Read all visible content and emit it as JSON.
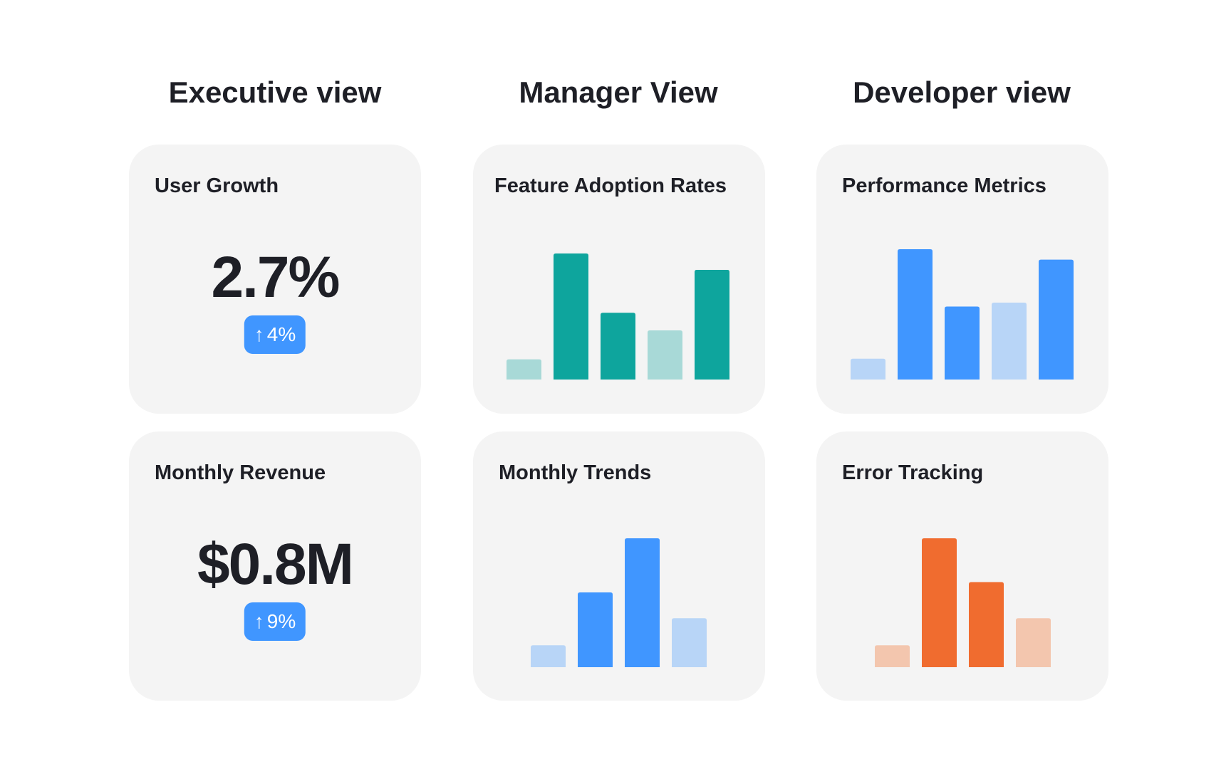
{
  "headings": [
    "Executive view",
    "Manager View",
    "Developer view"
  ],
  "executive": {
    "user_growth": {
      "title": "User Growth",
      "value": "2.7%",
      "change": "4%",
      "change_icon": "arrow-up-icon"
    },
    "monthly_revenue": {
      "title": "Monthly Revenue",
      "value": "$0.8M",
      "change": "9%",
      "change_icon": "arrow-up-icon"
    },
    "badge_color": "#4096ff"
  },
  "chart_data": [
    {
      "type": "bar",
      "title": "Feature Adoption Rates",
      "values": [
        16,
        100,
        53,
        39,
        87
      ],
      "colors": [
        "#a8d9d7",
        "#0ea59d",
        "#0ea59d",
        "#a8d9d7",
        "#0ea59d"
      ]
    },
    {
      "type": "bar",
      "title": "Performance Metrics",
      "values": [
        16,
        100,
        56,
        59,
        92
      ],
      "colors": [
        "#b8d5f7",
        "#4096ff",
        "#4096ff",
        "#b8d5f7",
        "#4096ff"
      ]
    },
    {
      "type": "bar",
      "title": "Monthly Trends",
      "values": [
        17,
        58,
        100,
        38
      ],
      "colors": [
        "#b8d5f7",
        "#4096ff",
        "#4096ff",
        "#b8d5f7"
      ]
    },
    {
      "type": "bar",
      "title": "Error Tracking",
      "values": [
        17,
        100,
        66,
        38
      ],
      "colors": [
        "#f3c6ae",
        "#f06c2f",
        "#f06c2f",
        "#f3c6ae"
      ]
    }
  ]
}
